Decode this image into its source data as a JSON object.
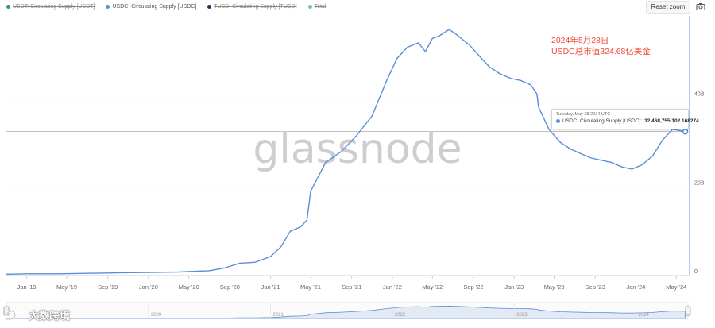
{
  "legend": [
    {
      "label": "USDT: Circulating Supply [USDT]",
      "color": "#2e9b6e",
      "active": false
    },
    {
      "label": "USDC: Circulating Supply [USDC]",
      "color": "#5c8ed6",
      "active": true
    },
    {
      "label": "TUSD: Circulating Supply [TUSD]",
      "color": "#2d2d5a",
      "active": false
    },
    {
      "label": "Total",
      "color": "#6ac3c6",
      "active": false
    }
  ],
  "toolbar": {
    "reset_zoom_label": "Reset zoom",
    "camera_icon": "camera-icon"
  },
  "watermark": {
    "text": "glassnode"
  },
  "annotation": {
    "line1": "2024年5月28日",
    "line2": "USDC总市值324.68亿美金"
  },
  "tooltip": {
    "date": "Tuesday, May 28 2024 UTC",
    "series_label": "USDC: Circulating Supply [USDC]:",
    "value": "32,468,755,102.168274"
  },
  "brand_watermark": {
    "text": "大数跨境",
    "icon": "logo-mark"
  },
  "colors": {
    "series": "#5c8ed6",
    "grid": "#e9e9e9",
    "axis_text": "#666666",
    "annotation": "#f04a3a",
    "navigator_fill": "#e3eaf5"
  },
  "chart_data": {
    "type": "line",
    "series": [
      {
        "name": "USDC: Circulating Supply [USDC]",
        "x": [
          "2018-11-01",
          "2019-01-01",
          "2019-04-01",
          "2019-07-01",
          "2019-10-01",
          "2020-01-01",
          "2020-04-01",
          "2020-07-01",
          "2020-08-15",
          "2020-10-01",
          "2020-11-15",
          "2021-01-01",
          "2021-02-01",
          "2021-03-01",
          "2021-04-01",
          "2021-04-20",
          "2021-05-01",
          "2021-06-15",
          "2021-08-01",
          "2021-09-15",
          "2021-11-01",
          "2021-12-15",
          "2022-01-15",
          "2022-02-15",
          "2022-03-20",
          "2022-04-10",
          "2022-05-01",
          "2022-05-20",
          "2022-06-20",
          "2022-07-10",
          "2022-08-20",
          "2022-09-25",
          "2022-10-20",
          "2022-11-20",
          "2022-12-20",
          "2023-01-20",
          "2023-02-20",
          "2023-03-10",
          "2023-03-15",
          "2023-04-15",
          "2023-05-20",
          "2023-06-20",
          "2023-07-20",
          "2023-08-20",
          "2023-09-20",
          "2023-10-20",
          "2023-11-20",
          "2023-12-20",
          "2024-01-20",
          "2024-02-20",
          "2024-03-20",
          "2024-04-20",
          "2024-05-28"
        ],
        "values": [
          0.3,
          0.4,
          0.4,
          0.5,
          0.6,
          0.7,
          0.8,
          1.1,
          1.7,
          2.8,
          3.0,
          4.3,
          6.5,
          10.0,
          11.0,
          12.5,
          19.0,
          25.5,
          28.0,
          31.5,
          36.0,
          44.0,
          49.0,
          51.5,
          52.5,
          50.5,
          53.5,
          54.0,
          55.5,
          54.5,
          52.0,
          49.0,
          47.0,
          45.5,
          44.5,
          44.0,
          43.0,
          41.0,
          38.0,
          33.0,
          30.0,
          28.5,
          27.5,
          26.5,
          26.0,
          25.5,
          24.5,
          24.0,
          25.0,
          27.0,
          30.5,
          33.0,
          32.47
        ]
      }
    ],
    "x_ticks": [
      "Jan '19",
      "May '19",
      "Sep '19",
      "Jan '20",
      "May '20",
      "Sep '20",
      "Jan '21",
      "May '21",
      "Sep '21",
      "Jan '22",
      "May '22",
      "Sep '22",
      "Jan '23",
      "May '23",
      "Sep '23",
      "Jan '24",
      "May '24"
    ],
    "y_ticks": [
      "0",
      "20B",
      "40B"
    ],
    "y_unit": "billions",
    "ylim": [
      0,
      60
    ],
    "xlim": [
      "2018-11-01",
      "2024-06-05"
    ],
    "navigator_ticks": [
      "2020",
      "2021",
      "2022",
      "2023",
      "2024"
    ],
    "grid": true
  }
}
